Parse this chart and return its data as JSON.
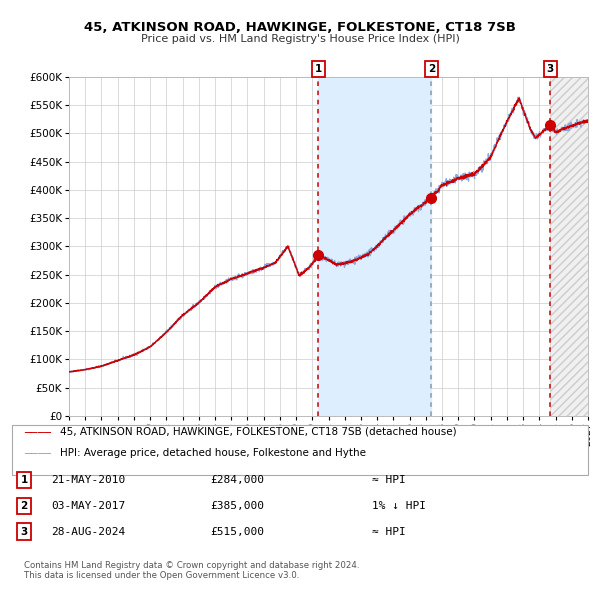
{
  "title": "45, ATKINSON ROAD, HAWKINGE, FOLKESTONE, CT18 7SB",
  "subtitle": "Price paid vs. HM Land Registry's House Price Index (HPI)",
  "ylim": [
    0,
    600000
  ],
  "yticks": [
    0,
    50000,
    100000,
    150000,
    200000,
    250000,
    300000,
    350000,
    400000,
    450000,
    500000,
    550000,
    600000
  ],
  "ytick_labels": [
    "£0",
    "£50K",
    "£100K",
    "£150K",
    "£200K",
    "£250K",
    "£300K",
    "£350K",
    "£400K",
    "£450K",
    "£500K",
    "£550K",
    "£600K"
  ],
  "hpi_color": "#88aadd",
  "price_color": "#cc0000",
  "dot_color": "#cc0000",
  "grid_color": "#cccccc",
  "bg_color": "#ffffff",
  "shade_color": "#ddeeff",
  "purchases": [
    {
      "label": "1",
      "date_x": 2010.38,
      "price": 284000
    },
    {
      "label": "2",
      "date_x": 2017.34,
      "price": 385000
    },
    {
      "label": "3",
      "date_x": 2024.66,
      "price": 515000
    }
  ],
  "purchase_labels": [
    {
      "num": "1",
      "date": "21-MAY-2010",
      "price": "£284,000",
      "rel": "≈ HPI"
    },
    {
      "num": "2",
      "date": "03-MAY-2017",
      "price": "£385,000",
      "rel": "1% ↓ HPI"
    },
    {
      "num": "3",
      "date": "28-AUG-2024",
      "price": "£515,000",
      "rel": "≈ HPI"
    }
  ],
  "legend_house": "45, ATKINSON ROAD, HAWKINGE, FOLKESTONE, CT18 7SB (detached house)",
  "legend_hpi": "HPI: Average price, detached house, Folkestone and Hythe",
  "footer1": "Contains HM Land Registry data © Crown copyright and database right 2024.",
  "footer2": "This data is licensed under the Open Government Licence v3.0.",
  "xmin": 1995.0,
  "xmax": 2027.0
}
